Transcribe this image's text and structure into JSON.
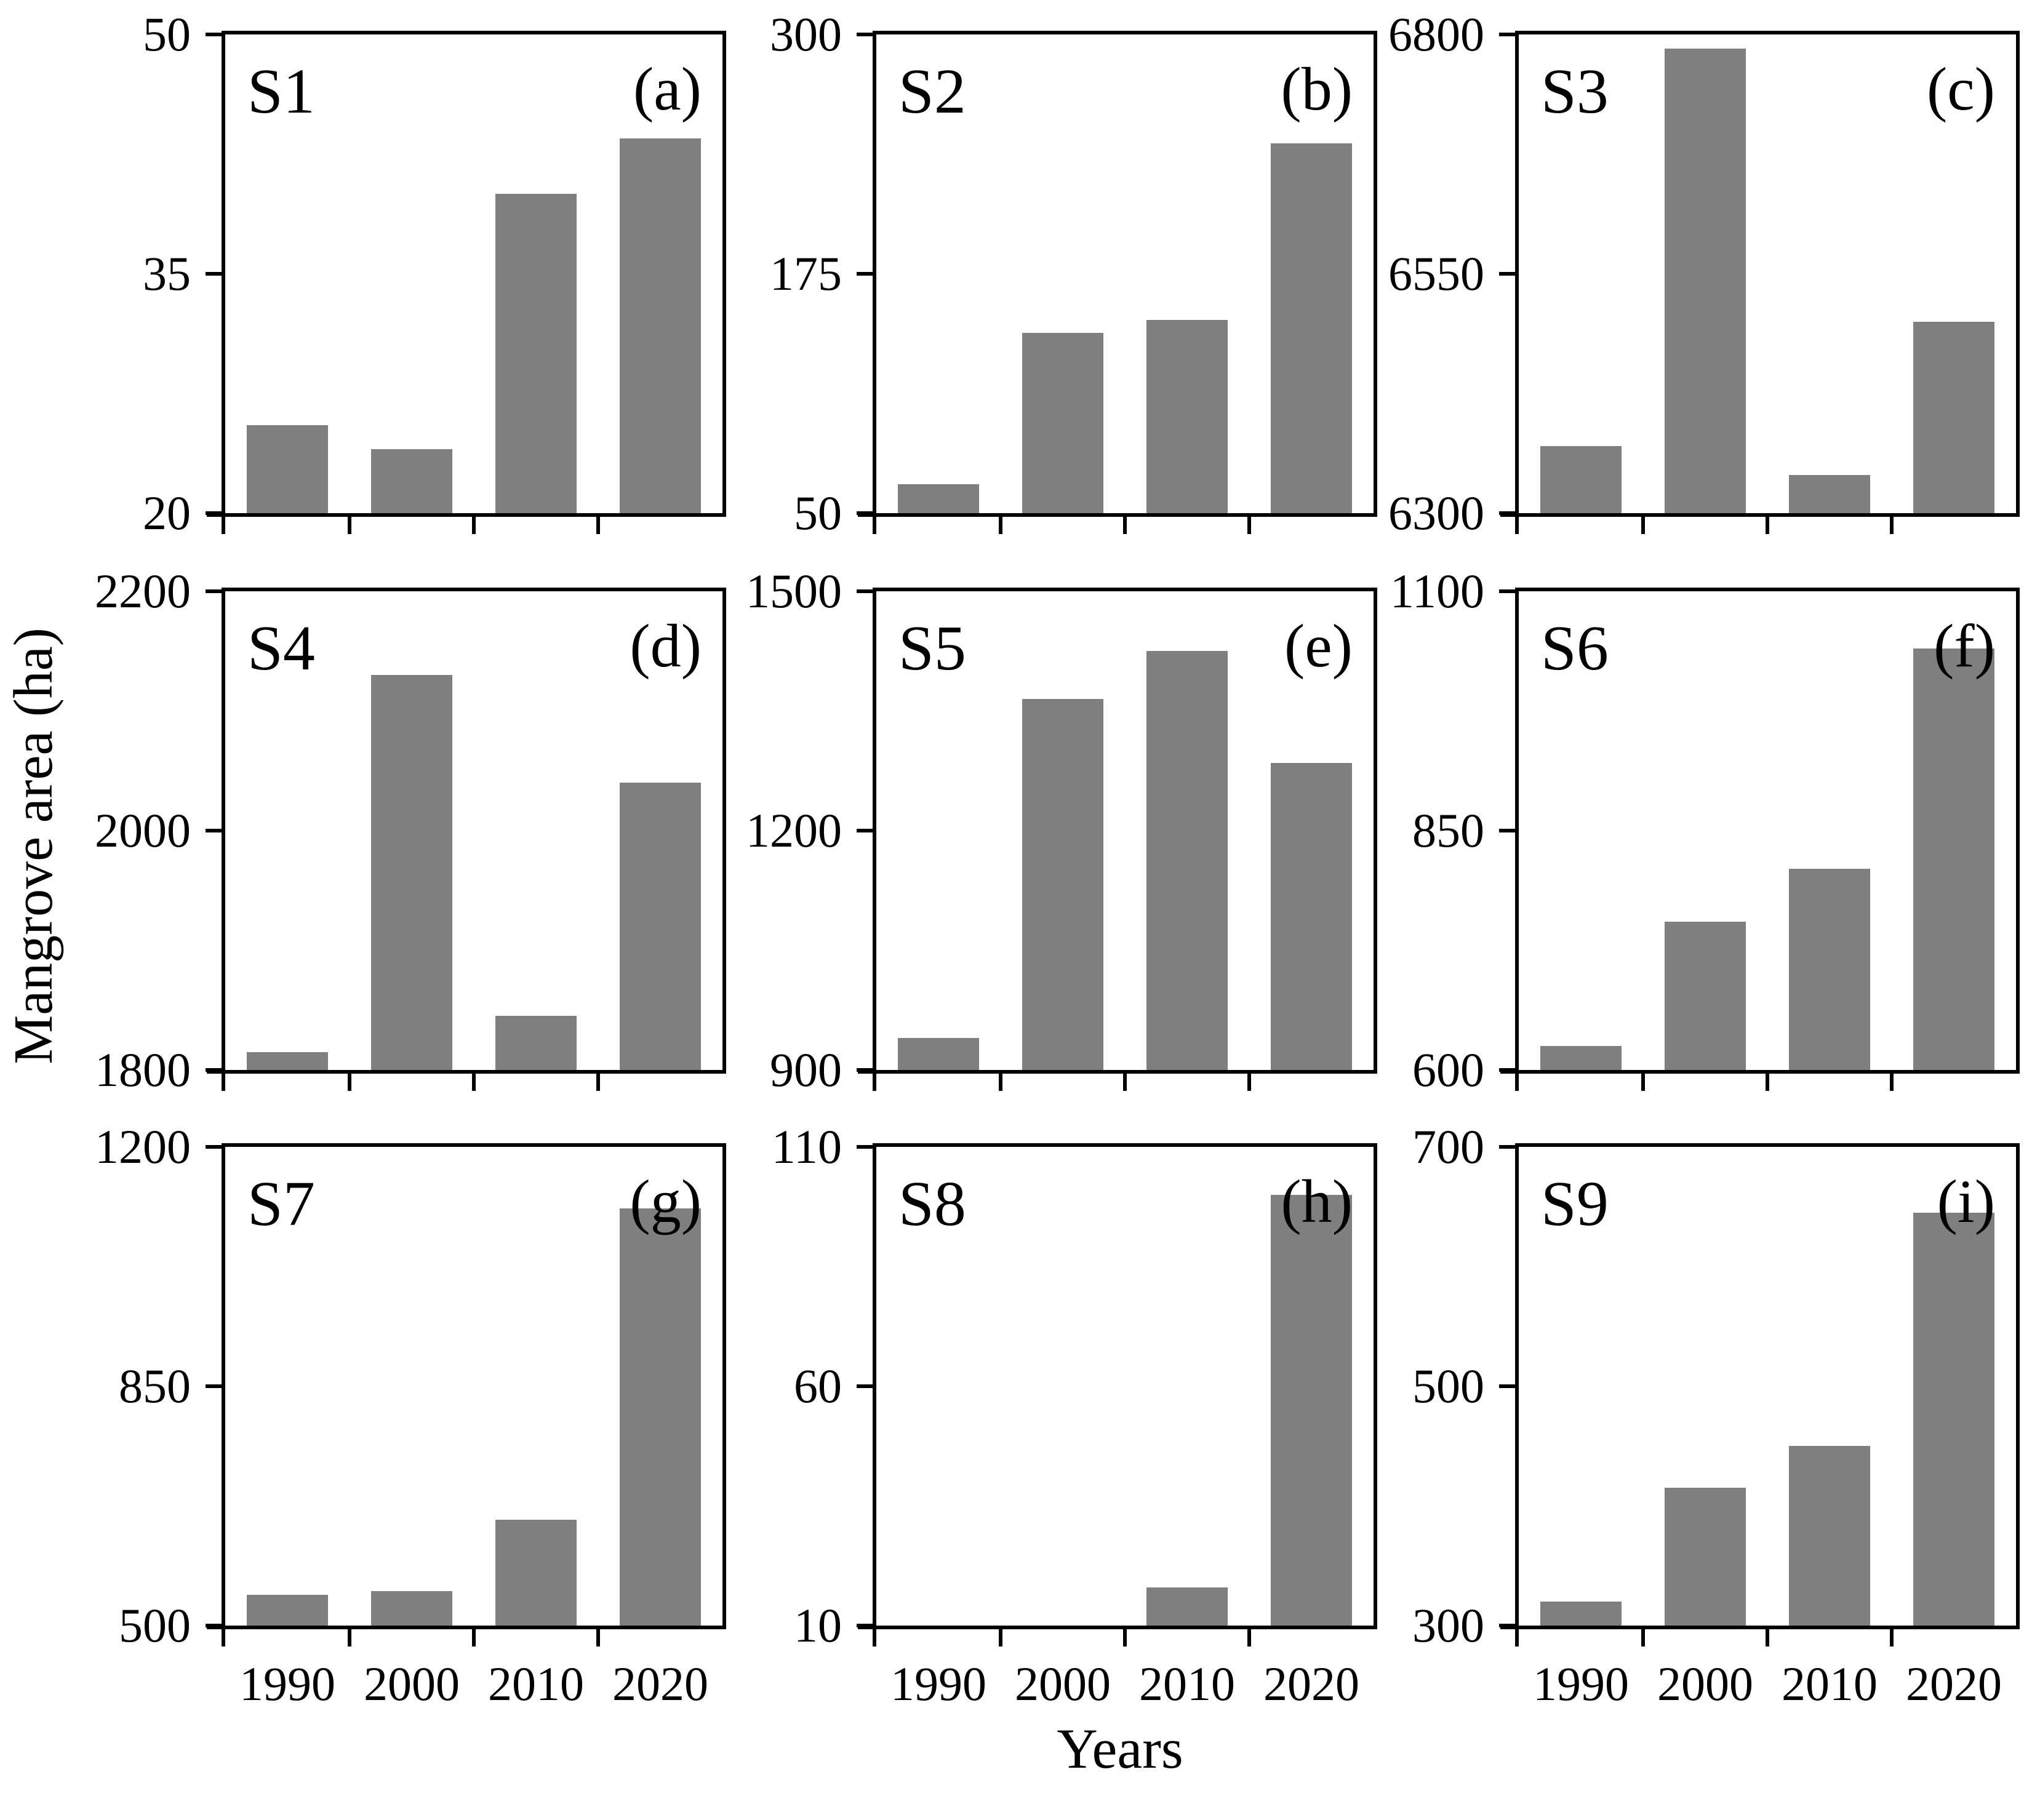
{
  "figure": {
    "ylabel": "Mangrove area (ha)",
    "xlabel": "Years",
    "bar_color": "#7f7f7f",
    "axis_color": "#000000",
    "x_categories": [
      "1990",
      "2000",
      "2010",
      "2020"
    ]
  },
  "chart_data": [
    {
      "type": "bar",
      "site": "S1",
      "letter": "(a)",
      "categories": [
        "1990",
        "2000",
        "2010",
        "2020"
      ],
      "values": [
        25.5,
        24,
        40,
        43.5
      ],
      "ylim": [
        20,
        50
      ],
      "yticks": [
        20,
        35,
        50
      ],
      "show_x_labels": false
    },
    {
      "type": "bar",
      "site": "S2",
      "letter": "(b)",
      "categories": [
        "1990",
        "2000",
        "2010",
        "2020"
      ],
      "values": [
        65,
        144,
        151,
        243
      ],
      "ylim": [
        50,
        300
      ],
      "yticks": [
        50,
        175,
        300
      ],
      "show_x_labels": false
    },
    {
      "type": "bar",
      "site": "S3",
      "letter": "(c)",
      "categories": [
        "1990",
        "2000",
        "2010",
        "2020"
      ],
      "values": [
        6370,
        6785,
        6340,
        6500
      ],
      "ylim": [
        6300,
        6800
      ],
      "yticks": [
        6300,
        6550,
        6800
      ],
      "show_x_labels": false
    },
    {
      "type": "bar",
      "site": "S4",
      "letter": "(d)",
      "categories": [
        "1990",
        "2000",
        "2010",
        "2020"
      ],
      "values": [
        1815,
        2130,
        1845,
        2040
      ],
      "ylim": [
        1800,
        2200
      ],
      "yticks": [
        1800,
        2000,
        2200
      ],
      "show_x_labels": false
    },
    {
      "type": "bar",
      "site": "S5",
      "letter": "(e)",
      "categories": [
        "1990",
        "2000",
        "2010",
        "2020"
      ],
      "values": [
        940,
        1365,
        1425,
        1285
      ],
      "ylim": [
        900,
        1500
      ],
      "yticks": [
        900,
        1200,
        1500
      ],
      "show_x_labels": false
    },
    {
      "type": "bar",
      "site": "S6",
      "letter": "(f)",
      "categories": [
        "1990",
        "2000",
        "2010",
        "2020"
      ],
      "values": [
        625,
        755,
        810,
        1040
      ],
      "ylim": [
        600,
        1100
      ],
      "yticks": [
        600,
        850,
        1100
      ],
      "show_x_labels": false
    },
    {
      "type": "bar",
      "site": "S7",
      "letter": "(g)",
      "categories": [
        "1990",
        "2000",
        "2010",
        "2020"
      ],
      "values": [
        545,
        550,
        655,
        1110
      ],
      "ylim": [
        500,
        1200
      ],
      "yticks": [
        500,
        850,
        1200
      ],
      "show_x_labels": true
    },
    {
      "type": "bar",
      "site": "S8",
      "letter": "(h)",
      "categories": [
        "1990",
        "2000",
        "2010",
        "2020"
      ],
      "values": [
        10,
        10,
        18,
        100
      ],
      "ylim": [
        10,
        110
      ],
      "yticks": [
        10,
        60,
        110
      ],
      "show_x_labels": true
    },
    {
      "type": "bar",
      "site": "S9",
      "letter": "(i)",
      "categories": [
        "1990",
        "2000",
        "2010",
        "2020"
      ],
      "values": [
        320,
        415,
        450,
        645
      ],
      "ylim": [
        300,
        700
      ],
      "yticks": [
        300,
        500,
        700
      ],
      "show_x_labels": true
    }
  ]
}
